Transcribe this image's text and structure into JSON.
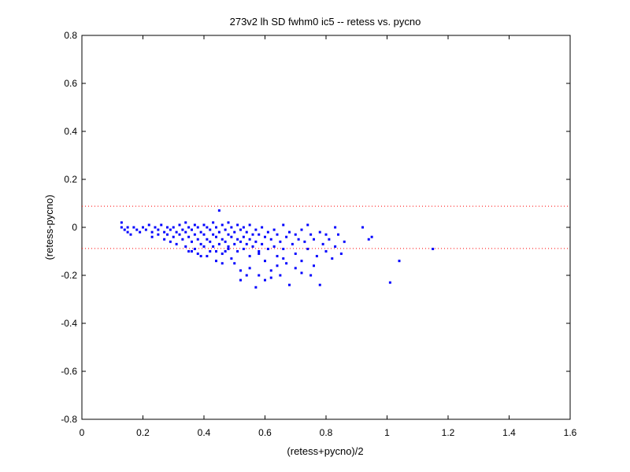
{
  "chart_data": {
    "type": "scatter",
    "title": "273v2 lh SD fwhm0 ic5 -- retess vs. pycno",
    "xlabel": "(retess+pycno)/2",
    "ylabel": "(retess-pycno)",
    "xlim": [
      0,
      1.6
    ],
    "ylim": [
      -0.8,
      0.8
    ],
    "x_ticks": [
      "0",
      "0.2",
      "0.4",
      "0.6",
      "0.8",
      "1",
      "1.2",
      "1.4",
      "1.6"
    ],
    "y_ticks": [
      "-0.8",
      "-0.6",
      "-0.4",
      "-0.2",
      "0",
      "0.2",
      "0.4",
      "0.6",
      "0.8"
    ],
    "grid": false,
    "marker_color": "#0000ff",
    "reference_line_color": "#ff0000",
    "reference_lines_y": [
      0.088,
      -0.088
    ],
    "points": [
      [
        0.13,
        0.0
      ],
      [
        0.13,
        0.02
      ],
      [
        0.14,
        -0.01
      ],
      [
        0.15,
        0.0
      ],
      [
        0.15,
        -0.02
      ],
      [
        0.16,
        -0.03
      ],
      [
        0.17,
        0.0
      ],
      [
        0.18,
        -0.01
      ],
      [
        0.19,
        -0.02
      ],
      [
        0.2,
        0.0
      ],
      [
        0.21,
        -0.01
      ],
      [
        0.22,
        0.01
      ],
      [
        0.23,
        -0.02
      ],
      [
        0.23,
        -0.04
      ],
      [
        0.24,
        0.0
      ],
      [
        0.25,
        -0.01
      ],
      [
        0.25,
        -0.03
      ],
      [
        0.26,
        0.01
      ],
      [
        0.27,
        -0.02
      ],
      [
        0.27,
        -0.05
      ],
      [
        0.28,
        0.0
      ],
      [
        0.28,
        -0.03
      ],
      [
        0.29,
        -0.01
      ],
      [
        0.29,
        -0.06
      ],
      [
        0.3,
        0.0
      ],
      [
        0.3,
        -0.04
      ],
      [
        0.31,
        -0.02
      ],
      [
        0.31,
        -0.07
      ],
      [
        0.32,
        0.01
      ],
      [
        0.32,
        -0.03
      ],
      [
        0.33,
        -0.01
      ],
      [
        0.33,
        -0.05
      ],
      [
        0.34,
        0.02
      ],
      [
        0.34,
        -0.02
      ],
      [
        0.34,
        -0.08
      ],
      [
        0.35,
        0.0
      ],
      [
        0.35,
        -0.04
      ],
      [
        0.35,
        -0.1
      ],
      [
        0.36,
        -0.01
      ],
      [
        0.36,
        -0.06
      ],
      [
        0.37,
        0.01
      ],
      [
        0.37,
        -0.03
      ],
      [
        0.37,
        -0.09
      ],
      [
        0.38,
        0.0
      ],
      [
        0.38,
        -0.05
      ],
      [
        0.38,
        -0.11
      ],
      [
        0.39,
        -0.02
      ],
      [
        0.39,
        -0.07
      ],
      [
        0.4,
        0.01
      ],
      [
        0.4,
        -0.03
      ],
      [
        0.4,
        -0.08
      ],
      [
        0.41,
        0.0
      ],
      [
        0.41,
        -0.05
      ],
      [
        0.41,
        -0.12
      ],
      [
        0.42,
        -0.01
      ],
      [
        0.42,
        -0.06
      ],
      [
        0.42,
        -0.1
      ],
      [
        0.43,
        0.02
      ],
      [
        0.43,
        -0.03
      ],
      [
        0.43,
        -0.08
      ],
      [
        0.44,
        0.0
      ],
      [
        0.44,
        -0.04
      ],
      [
        0.44,
        -0.14
      ],
      [
        0.45,
        0.07
      ],
      [
        0.45,
        -0.02
      ],
      [
        0.45,
        -0.07
      ],
      [
        0.46,
        0.01
      ],
      [
        0.46,
        -0.05
      ],
      [
        0.46,
        -0.11
      ],
      [
        0.47,
        -0.01
      ],
      [
        0.47,
        -0.06
      ],
      [
        0.47,
        -0.1
      ],
      [
        0.48,
        0.02
      ],
      [
        0.48,
        -0.03
      ],
      [
        0.48,
        -0.08
      ],
      [
        0.49,
        0.0
      ],
      [
        0.49,
        -0.04
      ],
      [
        0.49,
        -0.13
      ],
      [
        0.5,
        -0.02
      ],
      [
        0.5,
        -0.07
      ],
      [
        0.5,
        -0.15
      ],
      [
        0.51,
        0.01
      ],
      [
        0.51,
        -0.05
      ],
      [
        0.51,
        -0.1
      ],
      [
        0.52,
        -0.01
      ],
      [
        0.52,
        -0.06
      ],
      [
        0.52,
        -0.22
      ],
      [
        0.53,
        0.0
      ],
      [
        0.53,
        -0.04
      ],
      [
        0.53,
        -0.09
      ],
      [
        0.54,
        -0.02
      ],
      [
        0.54,
        -0.07
      ],
      [
        0.54,
        -0.2
      ],
      [
        0.55,
        0.01
      ],
      [
        0.55,
        -0.05
      ],
      [
        0.55,
        -0.12
      ],
      [
        0.56,
        -0.03
      ],
      [
        0.56,
        -0.08
      ],
      [
        0.57,
        -0.25
      ],
      [
        0.57,
        -0.01
      ],
      [
        0.57,
        -0.06
      ],
      [
        0.58,
        -0.03
      ],
      [
        0.58,
        -0.11
      ],
      [
        0.59,
        0.0
      ],
      [
        0.59,
        -0.07
      ],
      [
        0.6,
        -0.04
      ],
      [
        0.6,
        -0.14
      ],
      [
        0.61,
        -0.02
      ],
      [
        0.61,
        -0.09
      ],
      [
        0.62,
        -0.05
      ],
      [
        0.62,
        -0.18
      ],
      [
        0.63,
        -0.01
      ],
      [
        0.63,
        -0.08
      ],
      [
        0.64,
        -0.03
      ],
      [
        0.64,
        -0.12
      ],
      [
        0.65,
        -0.06
      ],
      [
        0.65,
        -0.2
      ],
      [
        0.66,
        0.01
      ],
      [
        0.66,
        -0.09
      ],
      [
        0.67,
        -0.04
      ],
      [
        0.67,
        -0.15
      ],
      [
        0.68,
        -0.02
      ],
      [
        0.68,
        -0.24
      ],
      [
        0.69,
        -0.07
      ],
      [
        0.7,
        -0.03
      ],
      [
        0.7,
        -0.11
      ],
      [
        0.71,
        -0.05
      ],
      [
        0.72,
        -0.01
      ],
      [
        0.72,
        -0.14
      ],
      [
        0.73,
        -0.06
      ],
      [
        0.74,
        0.01
      ],
      [
        0.74,
        -0.09
      ],
      [
        0.75,
        -0.03
      ],
      [
        0.75,
        -0.2
      ],
      [
        0.76,
        -0.05
      ],
      [
        0.77,
        -0.12
      ],
      [
        0.78,
        -0.02
      ],
      [
        0.78,
        -0.24
      ],
      [
        0.79,
        -0.07
      ],
      [
        0.8,
        -0.03
      ],
      [
        0.8,
        -0.1
      ],
      [
        0.81,
        -0.05
      ],
      [
        0.82,
        -0.13
      ],
      [
        0.83,
        0.0
      ],
      [
        0.83,
        -0.08
      ],
      [
        0.84,
        -0.03
      ],
      [
        0.85,
        -0.11
      ],
      [
        0.86,
        -0.06
      ],
      [
        0.92,
        0.0
      ],
      [
        0.94,
        -0.05
      ],
      [
        0.95,
        -0.04
      ],
      [
        1.01,
        -0.23
      ],
      [
        1.04,
        -0.14
      ],
      [
        1.15,
        -0.09
      ],
      [
        0.58,
        -0.2
      ],
      [
        0.6,
        -0.22
      ],
      [
        0.62,
        -0.21
      ],
      [
        0.52,
        -0.18
      ],
      [
        0.55,
        -0.17
      ],
      [
        0.48,
        -0.09
      ],
      [
        0.36,
        -0.1
      ],
      [
        0.39,
        -0.12
      ],
      [
        0.44,
        -0.1
      ],
      [
        0.46,
        -0.15
      ],
      [
        0.58,
        -0.1
      ],
      [
        0.64,
        -0.16
      ],
      [
        0.7,
        -0.17
      ],
      [
        0.76,
        -0.16
      ],
      [
        0.66,
        -0.13
      ],
      [
        0.72,
        -0.19
      ]
    ]
  }
}
